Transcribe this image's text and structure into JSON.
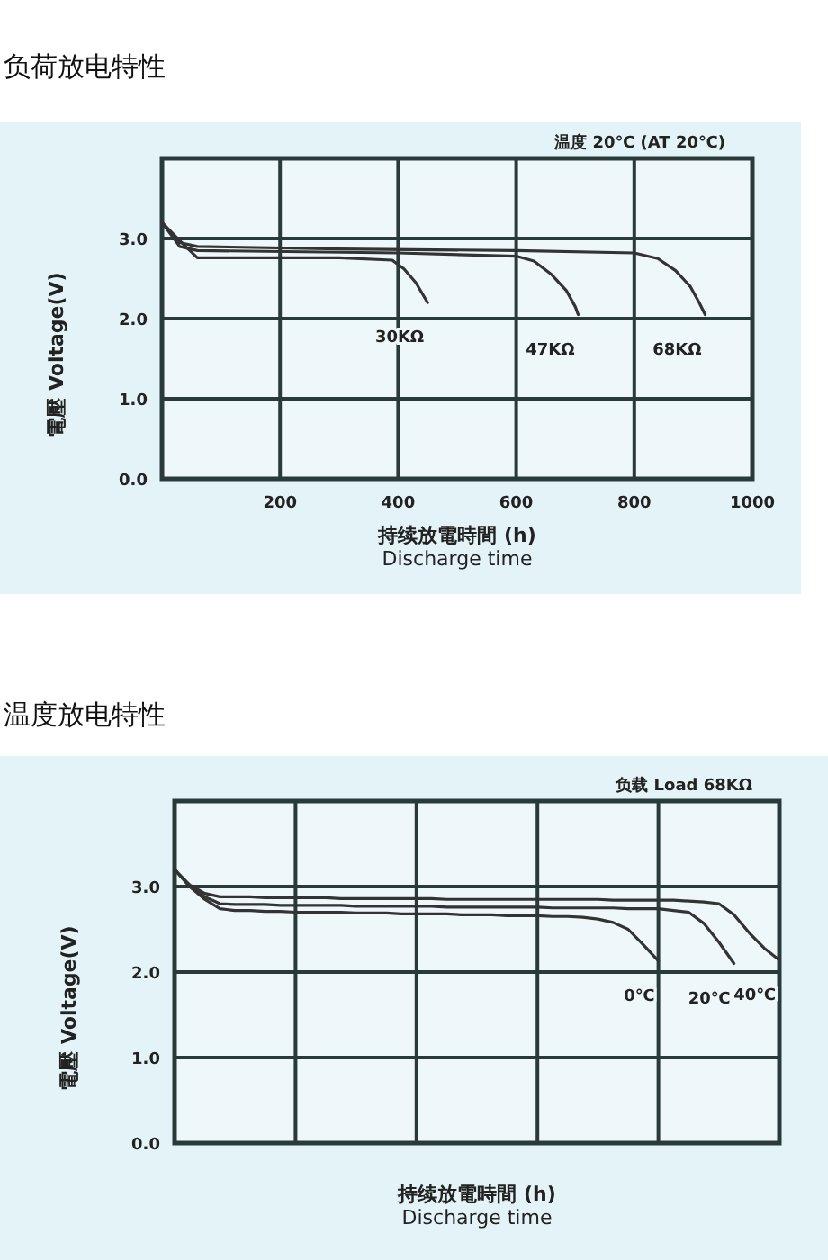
{
  "chart_data": [
    {
      "type": "line",
      "title": "负荷放电特性",
      "annotations": [
        "温度 20℃ (AT 20℃)"
      ],
      "xlabel": "持续放電時間 (h)\nDischarge time",
      "ylabel": "電壓 Voltage(V)",
      "xlim": [
        0,
        1000
      ],
      "xticks": [
        200,
        400,
        600,
        800,
        1000
      ],
      "ylim": [
        0,
        4
      ],
      "yticks": [
        {
          "value": 0,
          "label": "0.0"
        },
        {
          "value": 1,
          "label": "1.0"
        },
        {
          "value": 2,
          "label": "2.0"
        },
        {
          "value": 3,
          "label": "3.0"
        }
      ],
      "grid": true,
      "series": [
        {
          "name": "30KΩ",
          "color": "#333333",
          "x": [
            0,
            40,
            60,
            300,
            390,
            410,
            430,
            450
          ],
          "values": [
            3.2,
            2.9,
            2.76,
            2.76,
            2.73,
            2.62,
            2.45,
            2.2
          ]
        },
        {
          "name": "47KΩ",
          "color": "#333333",
          "x": [
            0,
            30,
            60,
            400,
            600,
            630,
            660,
            685,
            700,
            705
          ],
          "values": [
            3.2,
            2.9,
            2.85,
            2.82,
            2.78,
            2.72,
            2.55,
            2.35,
            2.15,
            2.05
          ]
        },
        {
          "name": "68KΩ",
          "color": "#333333",
          "x": [
            0,
            30,
            60,
            300,
            600,
            800,
            840,
            870,
            895,
            910,
            920
          ],
          "values": [
            3.2,
            2.95,
            2.9,
            2.87,
            2.85,
            2.82,
            2.75,
            2.6,
            2.4,
            2.2,
            2.05
          ]
        }
      ]
    },
    {
      "type": "line",
      "title": "温度放电特性",
      "annotations": [
        "负载 Load 68KΩ"
      ],
      "xlabel": "持续放電時間 (h)\nDischarge time",
      "ylabel": "電壓 Voltage(V)",
      "ylim": [
        0,
        4
      ],
      "yticks": [
        {
          "value": 0,
          "label": "0.0"
        },
        {
          "value": 1,
          "label": "1.0"
        },
        {
          "value": 2,
          "label": "2.0"
        },
        {
          "value": 3,
          "label": "3.0"
        }
      ],
      "grid": true,
      "tick_labels": "y",
      "categories": [
        null,
        null,
        null,
        null,
        null,
        null,
        null,
        null,
        null,
        null,
        null,
        null,
        null,
        null,
        null,
        null,
        null,
        null,
        null,
        null,
        null,
        null,
        null,
        null,
        null,
        null,
        null,
        null,
        null,
        null,
        null,
        null,
        null,
        null,
        null,
        null,
        null,
        null,
        null,
        null,
        null
      ],
      "series": [
        {
          "name": "0℃",
          "color": "#333333",
          "values": [
            3.2,
            3.0,
            2.85,
            2.74,
            2.72,
            2.72,
            2.71,
            2.71,
            2.7,
            2.7,
            2.7,
            2.7,
            2.69,
            2.69,
            2.69,
            2.68,
            2.68,
            2.68,
            2.68,
            2.67,
            2.67,
            2.67,
            2.66,
            2.66,
            2.66,
            2.65,
            2.65,
            2.64,
            2.62,
            2.58,
            2.5,
            2.32,
            2.13,
            null,
            null,
            null,
            null,
            null,
            null,
            null,
            null
          ]
        },
        {
          "name": "20℃",
          "color": "#333333",
          "values": [
            3.2,
            3.0,
            2.88,
            2.8,
            2.79,
            2.79,
            2.79,
            2.78,
            2.78,
            2.78,
            2.78,
            2.78,
            2.77,
            2.77,
            2.77,
            2.77,
            2.77,
            2.77,
            2.76,
            2.76,
            2.76,
            2.76,
            2.76,
            2.76,
            2.76,
            2.75,
            2.75,
            2.75,
            2.75,
            2.75,
            2.74,
            2.74,
            2.74,
            2.72,
            2.7,
            2.57,
            2.35,
            2.1,
            null,
            null,
            null
          ]
        },
        {
          "name": "40℃",
          "color": "#333333",
          "values": [
            3.2,
            3.02,
            2.92,
            2.88,
            2.88,
            2.88,
            2.87,
            2.87,
            2.87,
            2.87,
            2.87,
            2.86,
            2.86,
            2.86,
            2.86,
            2.86,
            2.86,
            2.86,
            2.85,
            2.85,
            2.85,
            2.85,
            2.85,
            2.85,
            2.85,
            2.85,
            2.85,
            2.85,
            2.85,
            2.84,
            2.84,
            2.84,
            2.84,
            2.84,
            2.83,
            2.82,
            2.8,
            2.67,
            2.46,
            2.28,
            2.14
          ]
        }
      ]
    }
  ]
}
